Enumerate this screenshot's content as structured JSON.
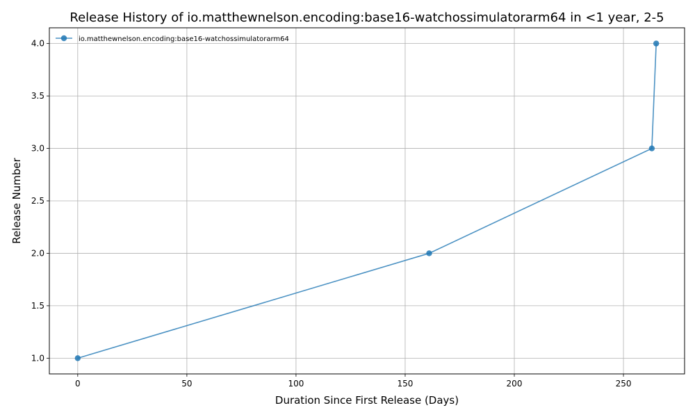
{
  "chart_data": {
    "type": "line",
    "title": "Release History of io.matthewnelson.encoding:base16-watchossimulatorarm64 in <1 year, 2-5",
    "xlabel": "Duration Since First Release (Days)",
    "ylabel": "Release Number",
    "xlim": [
      -13,
      278
    ],
    "ylim": [
      0.85,
      4.15
    ],
    "xticks": [
      0,
      50,
      100,
      150,
      200,
      250
    ],
    "yticks": [
      1.0,
      1.5,
      2.0,
      2.5,
      3.0,
      3.5,
      4.0
    ],
    "xtick_labels": [
      "0",
      "50",
      "100",
      "150",
      "200",
      "250"
    ],
    "ytick_labels": [
      "1.0",
      "1.5",
      "2.0",
      "2.5",
      "3.0",
      "3.5",
      "4.0"
    ],
    "grid": true,
    "legend_position": "top-left",
    "series": [
      {
        "name": "io.matthewnelson.encoding:base16-watchossimulatorarm64",
        "color": "#1f77b4",
        "x": [
          0,
          161,
          263,
          265
        ],
        "y": [
          1,
          2,
          3,
          4
        ]
      }
    ]
  }
}
